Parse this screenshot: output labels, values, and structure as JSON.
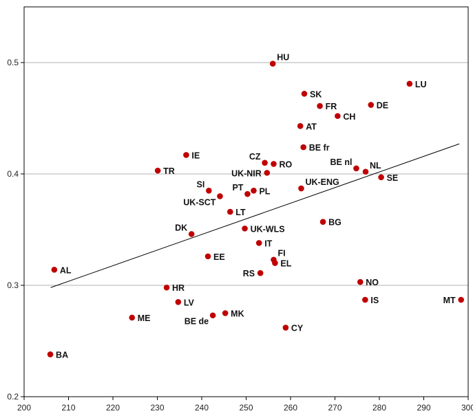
{
  "chart_data": {
    "type": "scatter",
    "title": "",
    "xlabel": "",
    "ylabel": "",
    "xlim": [
      200,
      300
    ],
    "ylim": [
      0.2,
      0.55
    ],
    "x_ticks": [
      200,
      210,
      220,
      230,
      240,
      250,
      260,
      270,
      280,
      290,
      300
    ],
    "y_ticks": [
      0.2,
      0.3,
      0.4,
      0.5
    ],
    "x_tick_labels": [
      "200",
      "210",
      "220",
      "230",
      "240",
      "250",
      "260",
      "270",
      "280",
      "290",
      "300"
    ],
    "y_tick_labels": [
      "0.2",
      "0.3",
      "0.4",
      "0.5"
    ],
    "grid": "horizontal",
    "marker_color": "#c00000",
    "trendline": {
      "x": [
        206,
        298
      ],
      "y": [
        0.298,
        0.427
      ],
      "color": "#000000"
    },
    "points": [
      {
        "label": "HU",
        "x": 256.0,
        "y": 0.499,
        "pos": "ne"
      },
      {
        "label": "LU",
        "x": 286.8,
        "y": 0.481,
        "pos": "e"
      },
      {
        "label": "SK",
        "x": 263.1,
        "y": 0.472,
        "pos": "e"
      },
      {
        "label": "FR",
        "x": 266.6,
        "y": 0.461,
        "pos": "e"
      },
      {
        "label": "DE",
        "x": 278.1,
        "y": 0.462,
        "pos": "e"
      },
      {
        "label": "CH",
        "x": 270.6,
        "y": 0.452,
        "pos": "e"
      },
      {
        "label": "AT",
        "x": 262.2,
        "y": 0.443,
        "pos": "e"
      },
      {
        "label": "BE fr",
        "x": 262.9,
        "y": 0.424,
        "pos": "e"
      },
      {
        "label": "IE",
        "x": 236.5,
        "y": 0.417,
        "pos": "e"
      },
      {
        "label": "CZ",
        "x": 254.2,
        "y": 0.41,
        "pos": "nw"
      },
      {
        "label": "RO",
        "x": 256.2,
        "y": 0.409,
        "pos": "e"
      },
      {
        "label": "BE nl",
        "x": 274.8,
        "y": 0.405,
        "pos": "nw"
      },
      {
        "label": "NL",
        "x": 276.9,
        "y": 0.402,
        "pos": "ne"
      },
      {
        "label": "TR",
        "x": 230.1,
        "y": 0.403,
        "pos": "e"
      },
      {
        "label": "UK-NIR",
        "x": 254.7,
        "y": 0.401,
        "pos": "w"
      },
      {
        "label": "SE",
        "x": 280.4,
        "y": 0.397,
        "pos": "e"
      },
      {
        "label": "UK-ENG",
        "x": 262.4,
        "y": 0.387,
        "pos": "ne"
      },
      {
        "label": "SI",
        "x": 241.6,
        "y": 0.385,
        "pos": "nw"
      },
      {
        "label": "PT",
        "x": 250.3,
        "y": 0.382,
        "pos": "nw"
      },
      {
        "label": "PL",
        "x": 251.7,
        "y": 0.385,
        "pos": "e"
      },
      {
        "label": "UK-SCT",
        "x": 244.1,
        "y": 0.38,
        "pos": "sw"
      },
      {
        "label": "LT",
        "x": 246.4,
        "y": 0.366,
        "pos": "e"
      },
      {
        "label": "BG",
        "x": 267.3,
        "y": 0.357,
        "pos": "e"
      },
      {
        "label": "UK-WLS",
        "x": 249.7,
        "y": 0.351,
        "pos": "e"
      },
      {
        "label": "DK",
        "x": 237.7,
        "y": 0.346,
        "pos": "nw"
      },
      {
        "label": "IT",
        "x": 252.9,
        "y": 0.338,
        "pos": "e"
      },
      {
        "label": "EE",
        "x": 241.4,
        "y": 0.326,
        "pos": "e"
      },
      {
        "label": "FI",
        "x": 256.2,
        "y": 0.323,
        "pos": "ne"
      },
      {
        "label": "EL",
        "x": 256.5,
        "y": 0.32,
        "pos": "e"
      },
      {
        "label": "AL",
        "x": 206.8,
        "y": 0.314,
        "pos": "e"
      },
      {
        "label": "RS",
        "x": 253.2,
        "y": 0.311,
        "pos": "w"
      },
      {
        "label": "NO",
        "x": 275.7,
        "y": 0.303,
        "pos": "e"
      },
      {
        "label": "HR",
        "x": 232.1,
        "y": 0.298,
        "pos": "e"
      },
      {
        "label": "IS",
        "x": 276.8,
        "y": 0.287,
        "pos": "e"
      },
      {
        "label": "MT",
        "x": 298.4,
        "y": 0.287,
        "pos": "w"
      },
      {
        "label": "LV",
        "x": 234.7,
        "y": 0.285,
        "pos": "e"
      },
      {
        "label": "MK",
        "x": 245.3,
        "y": 0.275,
        "pos": "e"
      },
      {
        "label": "BE de",
        "x": 242.5,
        "y": 0.273,
        "pos": "sw"
      },
      {
        "label": "ME",
        "x": 224.3,
        "y": 0.271,
        "pos": "e"
      },
      {
        "label": "CY",
        "x": 258.9,
        "y": 0.262,
        "pos": "e"
      },
      {
        "label": "BA",
        "x": 205.9,
        "y": 0.238,
        "pos": "e"
      }
    ]
  }
}
